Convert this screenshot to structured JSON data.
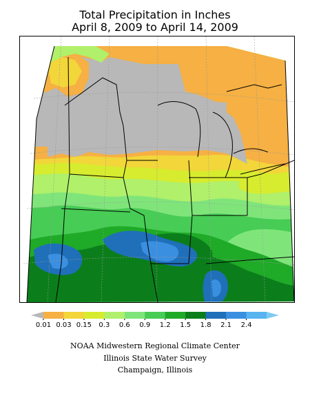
{
  "title": {
    "line1": "Total Precipitation in Inches",
    "line2": "April 8, 2009 to April 14, 2009"
  },
  "legend": {
    "bins": [
      {
        "color": "#b8b8b8"
      },
      {
        "color": "#f6b043"
      },
      {
        "color": "#f2d63a"
      },
      {
        "color": "#d7ec2e"
      },
      {
        "color": "#b0f06a"
      },
      {
        "color": "#7fe57a"
      },
      {
        "color": "#47cc55"
      },
      {
        "color": "#1faa28"
      },
      {
        "color": "#0b7e1b"
      },
      {
        "color": "#1f6fb9"
      },
      {
        "color": "#3a8fe0"
      },
      {
        "color": "#58b4f0"
      },
      {
        "color": "#7ecbf2"
      }
    ],
    "tick_labels": [
      "0.01",
      "0.03",
      "0.15",
      "0.3",
      "0.6",
      "0.9",
      "1.2",
      "1.5",
      "1.8",
      "2.1",
      "2.4"
    ]
  },
  "credits": {
    "line1": "NOAA Midwestern Regional Climate Center",
    "line2": "Illinois State Water Survey",
    "line3": "Champaign, Illinois"
  }
}
